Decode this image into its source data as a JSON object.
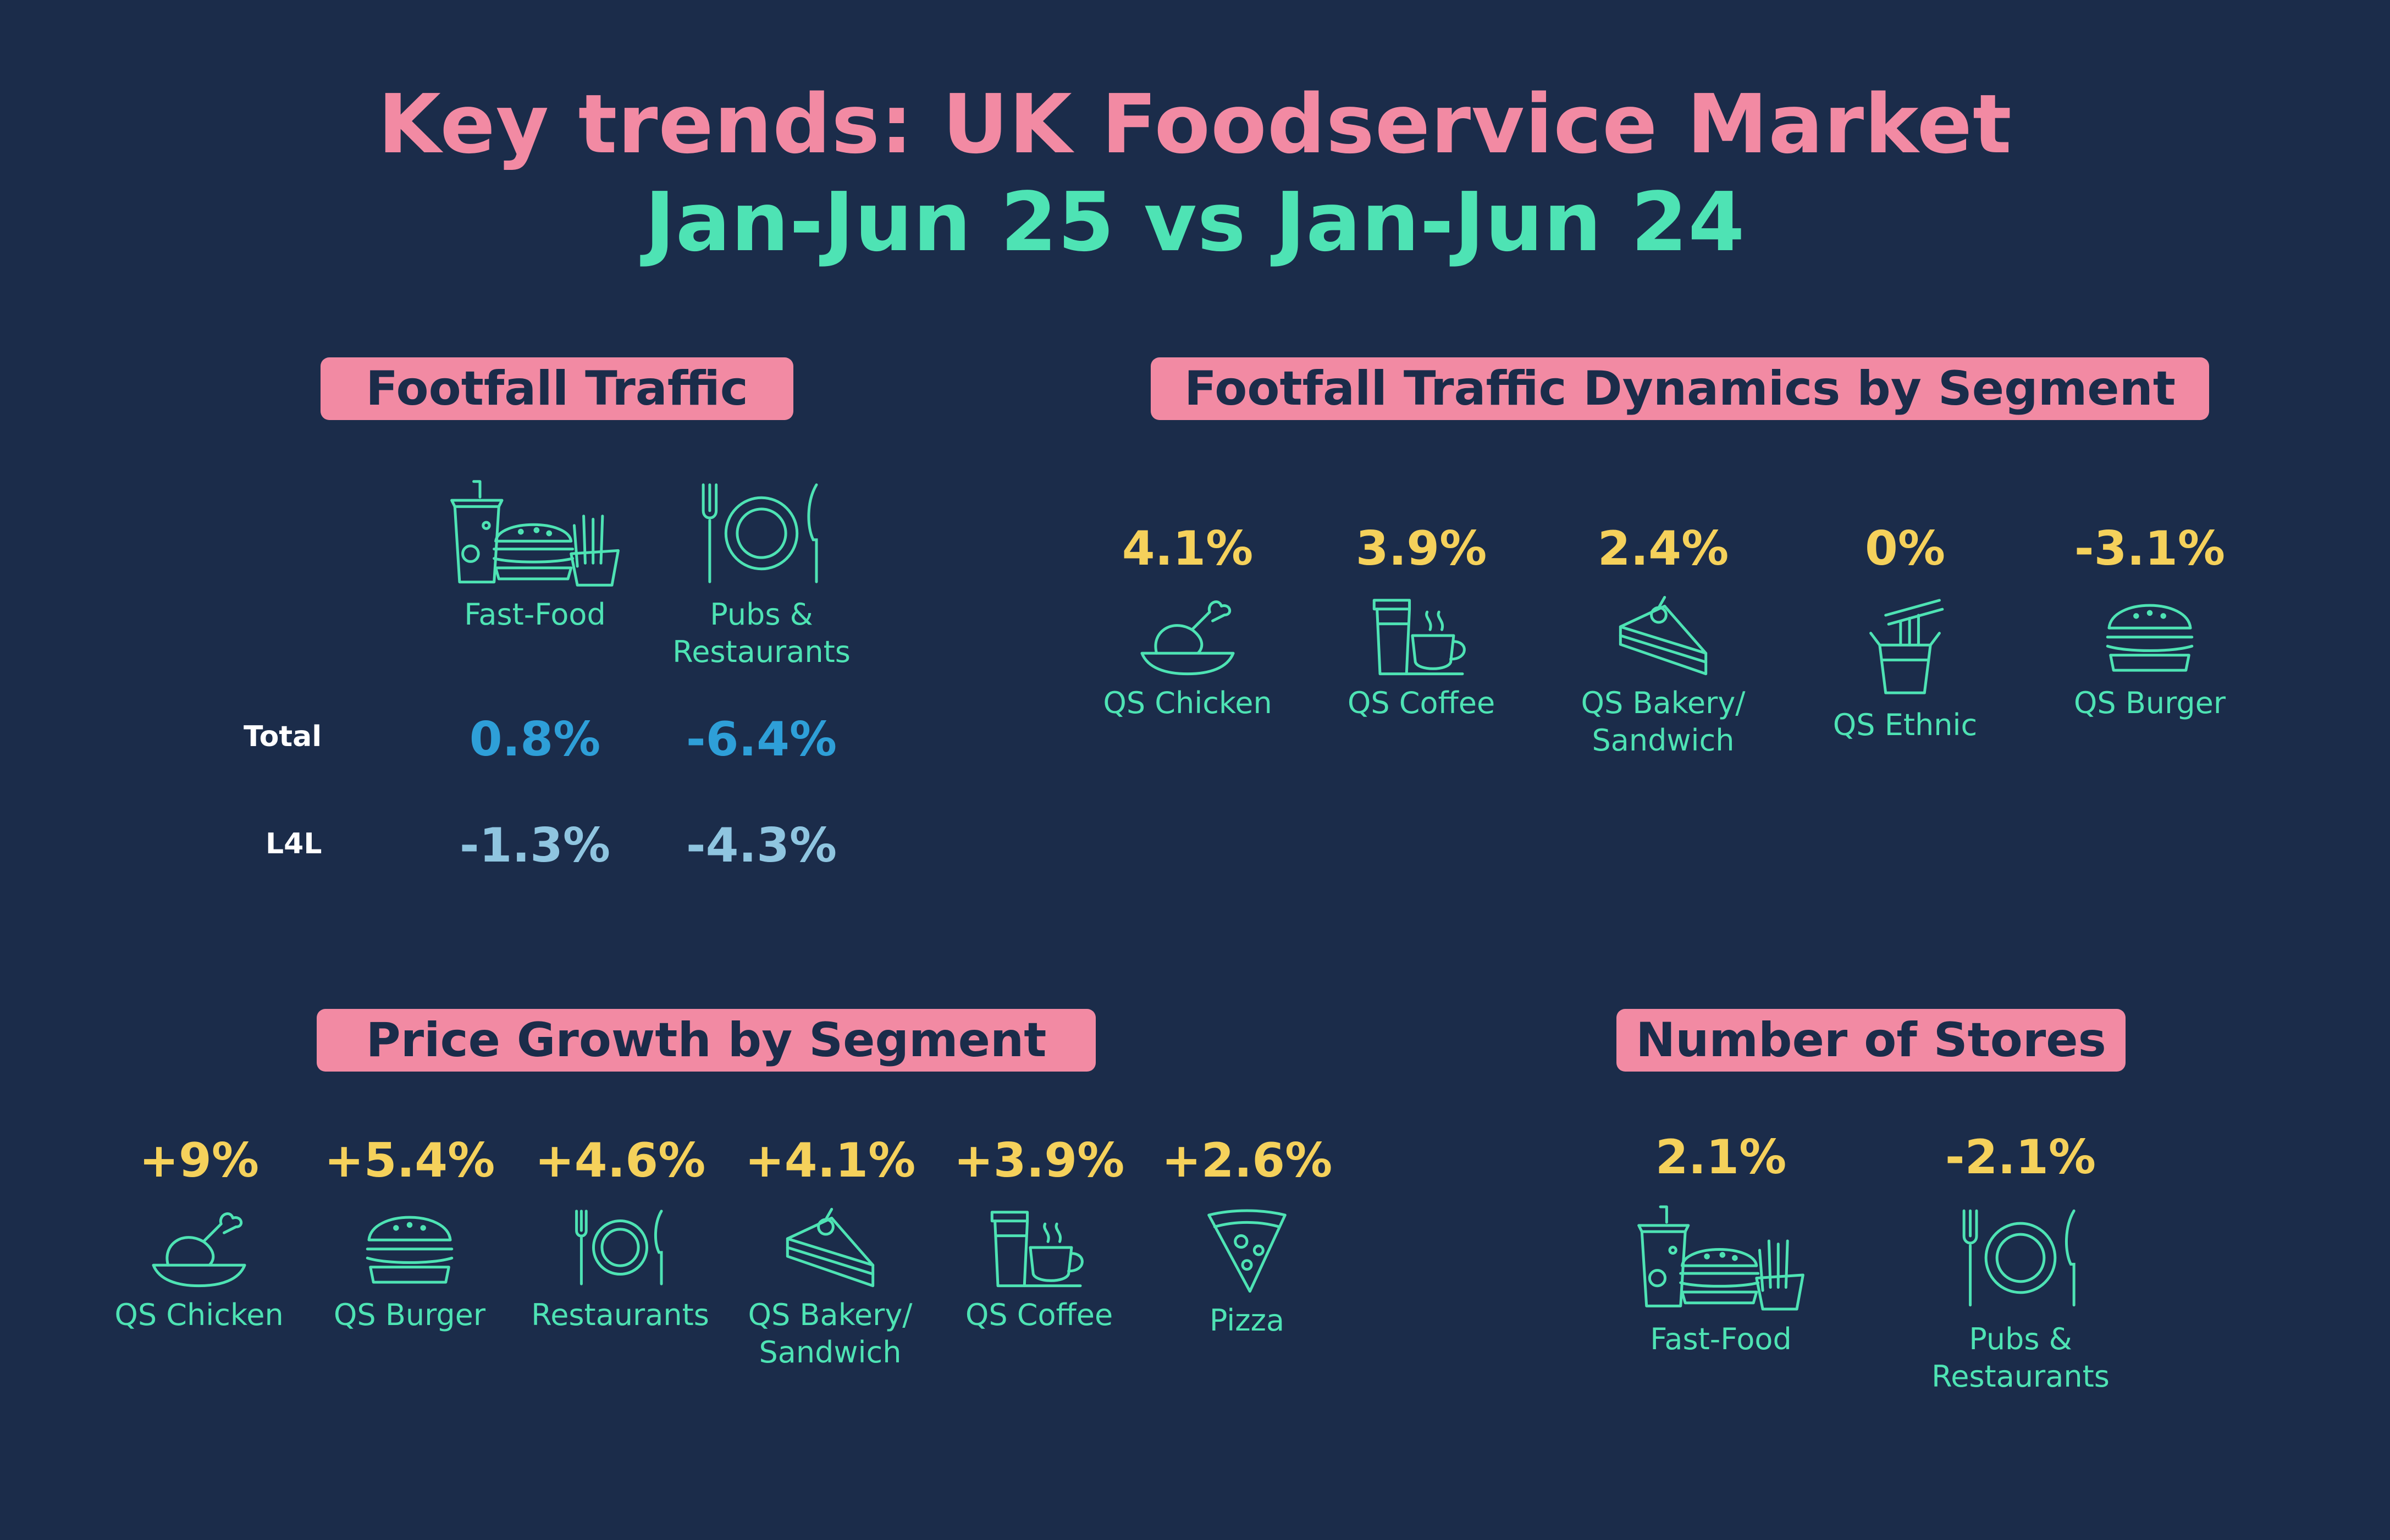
{
  "title": {
    "line1": "Key trends: UK Foodservice Market",
    "line2": "Jan-Jun 25 vs Jan-Jun 24"
  },
  "colors": {
    "background": "#1b2c4a",
    "pink": "#f28aa3",
    "green": "#4ee3b4",
    "yellow": "#f5d15b",
    "blue": "#2e9fd8",
    "light_blue": "#8fc5e0"
  },
  "footfall": {
    "heading": "Footfall Traffic",
    "columns": [
      {
        "label": "Fast-Food",
        "icon": "fast-food-icon"
      },
      {
        "label": "Pubs &\nRestaurants",
        "icon": "plate-cutlery-icon"
      }
    ],
    "rows": [
      {
        "label": "Total",
        "values": [
          "0.8%",
          "-6.4%"
        ]
      },
      {
        "label": "L4L",
        "values": [
          "-1.3%",
          "-4.3%"
        ]
      }
    ]
  },
  "dynamics": {
    "heading": "Footfall Traffic Dynamics by Segment",
    "items": [
      {
        "value": "4.1%",
        "label": "QS Chicken",
        "icon": "chicken-icon"
      },
      {
        "value": "3.9%",
        "label": "QS Coffee",
        "icon": "coffee-icon"
      },
      {
        "value": "2.4%",
        "label": "QS Bakery/\nSandwich",
        "icon": "cake-slice-icon"
      },
      {
        "value": "0%",
        "label": "QS Ethnic",
        "icon": "noodle-box-icon"
      },
      {
        "value": "-3.1%",
        "label": "QS Burger",
        "icon": "burger-icon"
      }
    ]
  },
  "price": {
    "heading": "Price Growth by Segment",
    "items": [
      {
        "value": "+9%",
        "label": "QS Chicken",
        "icon": "chicken-icon"
      },
      {
        "value": "+5.4%",
        "label": "QS Burger",
        "icon": "burger-icon"
      },
      {
        "value": "+4.6%",
        "label": "Restaurants",
        "icon": "plate-cutlery-icon"
      },
      {
        "value": "+4.1%",
        "label": "QS Bakery/\nSandwich",
        "icon": "cake-slice-icon"
      },
      {
        "value": "+3.9%",
        "label": "QS Coffee",
        "icon": "coffee-icon"
      },
      {
        "value": "+2.6%",
        "label": "Pizza",
        "icon": "pizza-icon"
      }
    ]
  },
  "stores": {
    "heading": "Number of Stores",
    "items": [
      {
        "value": "2.1%",
        "label": "Fast-Food",
        "icon": "fast-food-icon"
      },
      {
        "value": "-2.1%",
        "label": "Pubs &\nRestaurants",
        "icon": "plate-cutlery-icon"
      }
    ]
  }
}
